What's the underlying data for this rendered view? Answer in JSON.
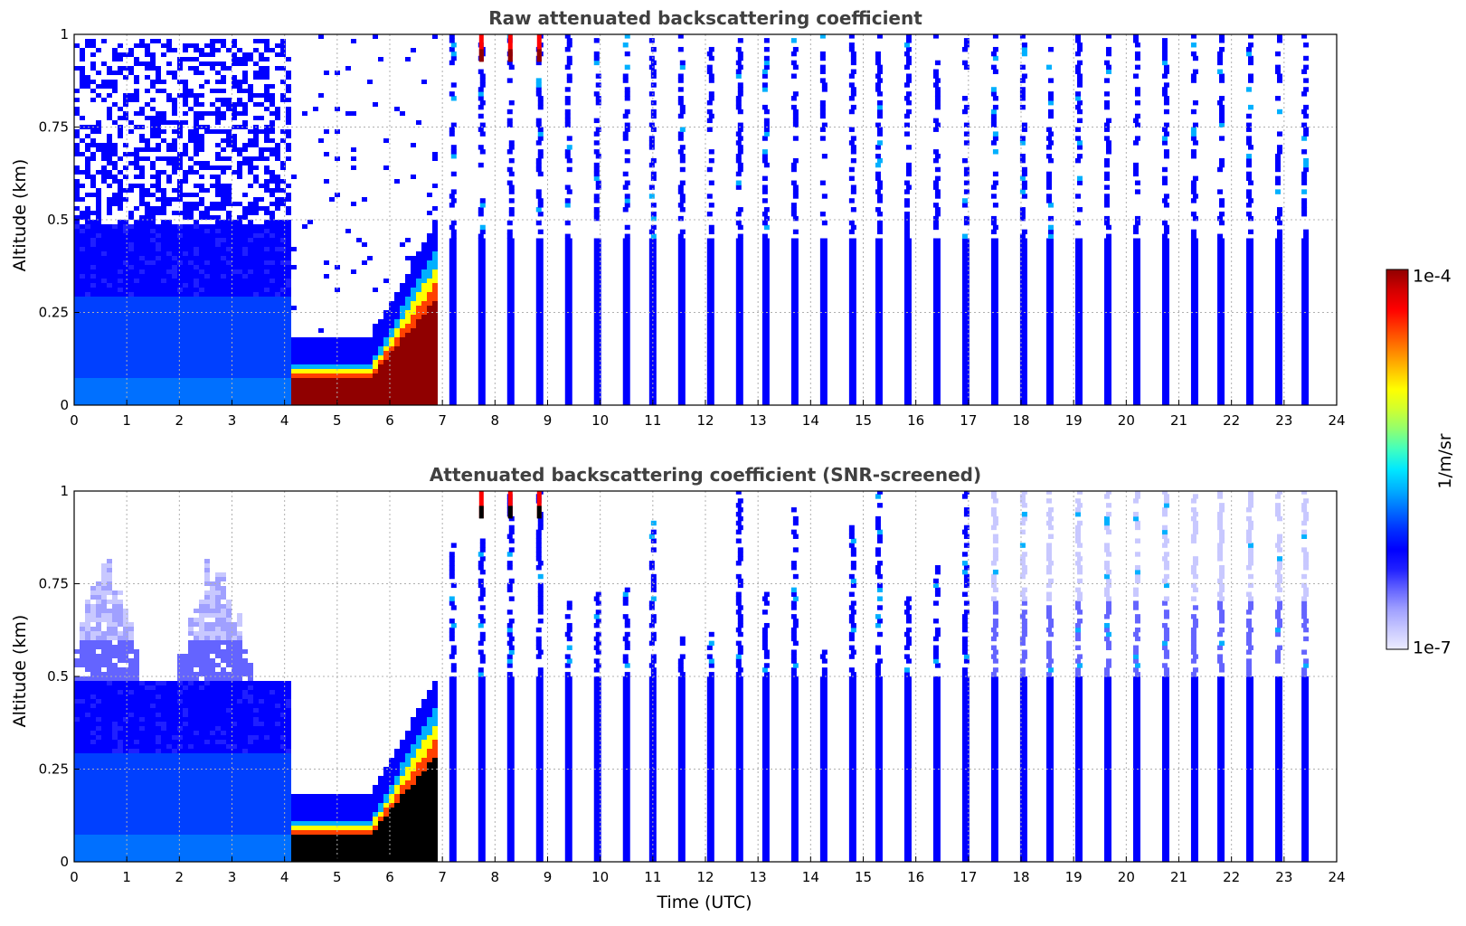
{
  "chart_data": [
    {
      "type": "heatmap",
      "title": "Raw attenuated backscattering coefficient",
      "xlabel": "",
      "ylabel": "Altitude (km)",
      "xlim": [
        0,
        24
      ],
      "ylim": [
        0,
        1
      ],
      "x_ticks": [
        "0",
        "1",
        "2",
        "3",
        "4",
        "5",
        "6",
        "7",
        "8",
        "9",
        "10",
        "11",
        "12",
        "13",
        "14",
        "15",
        "16",
        "17",
        "18",
        "19",
        "20",
        "21",
        "22",
        "23",
        "24"
      ],
      "y_ticks": [
        "0",
        "0.25",
        "0.5",
        "0.75",
        "1"
      ],
      "grid": true,
      "continuous_segment_end_utc": 7.05,
      "noise_top_km": 1.0,
      "fog_layer": {
        "start_utc": 4.1,
        "end_utc": 6.9,
        "top_km": 0.12,
        "rise_to_km": 0.45
      },
      "profile_times_utc": [
        7.2,
        7.75,
        8.3,
        8.85,
        9.4,
        9.95,
        10.5,
        11.0,
        11.55,
        12.1,
        12.65,
        13.15,
        13.7,
        14.25,
        14.8,
        15.3,
        15.85,
        16.4,
        16.95,
        17.5,
        18.05,
        18.55,
        19.1,
        19.65,
        20.2,
        20.75,
        21.3,
        21.8,
        22.35,
        22.9,
        23.4
      ]
    },
    {
      "type": "heatmap",
      "title": "Attenuated backscattering coefficient (SNR-screened)",
      "xlabel": "Time (UTC)",
      "ylabel": "Altitude (km)",
      "xlim": [
        0,
        24
      ],
      "ylim": [
        0,
        1
      ],
      "x_ticks": [
        "0",
        "1",
        "2",
        "3",
        "4",
        "5",
        "6",
        "7",
        "8",
        "9",
        "10",
        "11",
        "12",
        "13",
        "14",
        "15",
        "16",
        "17",
        "18",
        "19",
        "20",
        "21",
        "22",
        "23",
        "24"
      ],
      "y_ticks": [
        "0",
        "0.25",
        "0.5",
        "0.75",
        "1"
      ],
      "grid": true,
      "continuous_segment_end_utc": 7.05,
      "screened_top_km": 0.55,
      "fog_layer": {
        "start_utc": 4.1,
        "end_utc": 6.9,
        "top_km": 0.12,
        "rise_to_km": 0.45
      },
      "profile_times_utc": [
        7.2,
        7.75,
        8.3,
        8.85,
        9.4,
        9.95,
        10.5,
        11.0,
        11.55,
        12.1,
        12.65,
        13.15,
        13.7,
        14.25,
        14.8,
        15.3,
        15.85,
        16.4,
        16.95,
        17.5,
        18.05,
        18.55,
        19.1,
        19.65,
        20.2,
        20.75,
        21.3,
        21.8,
        22.35,
        22.9,
        23.4
      ],
      "profile_tops_km": [
        0.85,
        0.87,
        1.0,
        1.0,
        0.7,
        0.72,
        0.74,
        0.92,
        0.6,
        0.62,
        1.0,
        0.72,
        0.95,
        0.58,
        0.9,
        1.0,
        0.75,
        0.8,
        1.0,
        1.0,
        1.0,
        1.0,
        1.0,
        1.0,
        1.0,
        1.0,
        1.0,
        1.0,
        1.0,
        1.0,
        1.0
      ]
    }
  ],
  "colorbar": {
    "max_label": "1e-4",
    "min_label": "1e-7",
    "unit_label": "1/m/sr",
    "colors": [
      "#ececff",
      "#c8c8ff",
      "#a0a0ff",
      "#6464ff",
      "#2020ff",
      "#0000ff",
      "#0030ff",
      "#0070ff",
      "#00b0ff",
      "#00e8ff",
      "#40ffc0",
      "#90ff70",
      "#d0ff30",
      "#ffff00",
      "#ffc000",
      "#ff8000",
      "#ff4000",
      "#ff0000",
      "#d00000",
      "#900000"
    ]
  }
}
